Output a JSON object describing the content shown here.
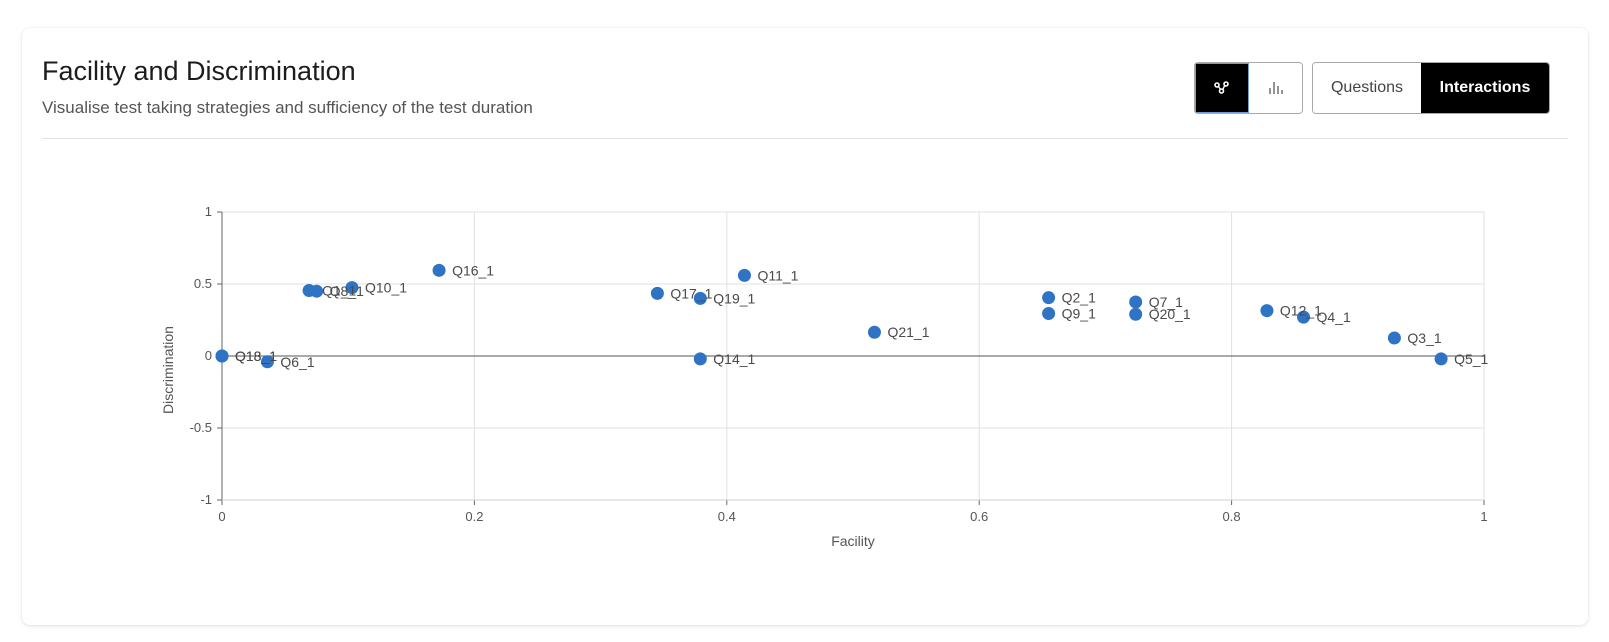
{
  "header": {
    "title": "Facility and Discrimination",
    "subtitle": "Visualise test taking strategies and sufficiency of the test duration"
  },
  "chart_toggle": {
    "items": [
      {
        "icon": "scatter-chart-icon",
        "active": true
      },
      {
        "icon": "bar-chart-icon",
        "active": false
      }
    ]
  },
  "view_toggle": {
    "questions_label": "Questions",
    "interactions_label": "Interactions",
    "active": "Interactions"
  },
  "colors": {
    "point": "#2f73c4",
    "accent": "#000000",
    "grid": "#e0e0e0",
    "axis": "#666666"
  },
  "chart_data": {
    "type": "scatter",
    "xlabel": "Facility",
    "ylabel": "Discrimination",
    "xlim": [
      0,
      1
    ],
    "ylim": [
      -1,
      1
    ],
    "xticks": [
      "0",
      "0.2",
      "0.4",
      "0.6",
      "0.8",
      "1"
    ],
    "yticks": [
      "1",
      "0.5",
      "0",
      "-0.5",
      "-1"
    ],
    "grid": true,
    "points": [
      {
        "label": "Q18_1",
        "x": 0.0,
        "y": 0.0
      },
      {
        "label": "Q13_1",
        "x": 0.0,
        "y": 0.0
      },
      {
        "label": "Q6_1",
        "x": 0.036,
        "y": -0.04
      },
      {
        "label": "Q1_1",
        "x": 0.069,
        "y": 0.455
      },
      {
        "label": "Q8_1",
        "x": 0.075,
        "y": 0.45
      },
      {
        "label": "Q10_1",
        "x": 0.103,
        "y": 0.475
      },
      {
        "label": "Q16_1",
        "x": 0.172,
        "y": 0.595
      },
      {
        "label": "Q17_1",
        "x": 0.345,
        "y": 0.435
      },
      {
        "label": "Q19_1",
        "x": 0.379,
        "y": 0.4
      },
      {
        "label": "Q14_1",
        "x": 0.379,
        "y": -0.02
      },
      {
        "label": "Q11_1",
        "x": 0.414,
        "y": 0.56
      },
      {
        "label": "Q21_1",
        "x": 0.517,
        "y": 0.165
      },
      {
        "label": "Q2_1",
        "x": 0.655,
        "y": 0.405
      },
      {
        "label": "Q9_1",
        "x": 0.655,
        "y": 0.295
      },
      {
        "label": "Q7_1",
        "x": 0.724,
        "y": 0.375
      },
      {
        "label": "Q20_1",
        "x": 0.724,
        "y": 0.29
      },
      {
        "label": "Q12_1",
        "x": 0.828,
        "y": 0.315
      },
      {
        "label": "Q4_1",
        "x": 0.857,
        "y": 0.27
      },
      {
        "label": "Q3_1",
        "x": 0.929,
        "y": 0.125
      },
      {
        "label": "Q5_1",
        "x": 0.966,
        "y": -0.02
      }
    ]
  }
}
